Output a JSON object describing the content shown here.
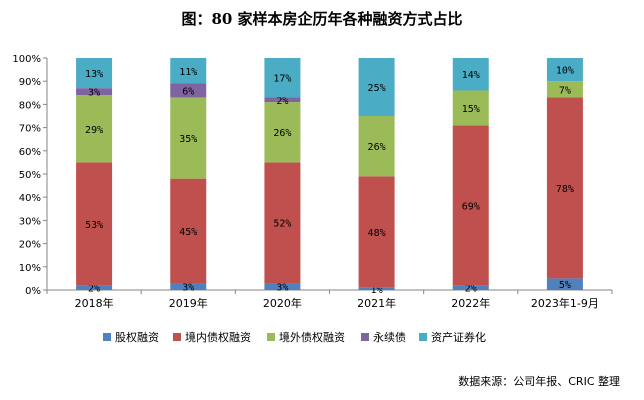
{
  "chart_data": {
    "type": "bar",
    "stacked": true,
    "title": "图：80 家样本房企历年各种融资方式占比",
    "categories": [
      "2018年",
      "2019年",
      "2020年",
      "2021年",
      "2022年",
      "2023年1-9月"
    ],
    "yticks": [
      "0%",
      "10%",
      "20%",
      "30%",
      "40%",
      "50%",
      "60%",
      "70%",
      "80%",
      "90%",
      "100%"
    ],
    "ylim": [
      0,
      100
    ],
    "legend_position": "bottom",
    "series": [
      {
        "name": "股权融资",
        "color": "#4f81bd",
        "values": [
          2,
          3,
          3,
          1,
          2,
          5
        ]
      },
      {
        "name": "境内债权融资",
        "color": "#c0504d",
        "values": [
          53,
          45,
          52,
          48,
          69,
          78
        ]
      },
      {
        "name": "境外债权融资",
        "color": "#9bbb59",
        "values": [
          29,
          35,
          26,
          26,
          15,
          7
        ]
      },
      {
        "name": "永续债",
        "color": "#8064a2",
        "values": [
          3,
          6,
          2,
          0,
          0,
          0
        ]
      },
      {
        "name": "资产证券化",
        "color": "#4bacc6",
        "values": [
          13,
          11,
          17,
          25,
          14,
          10
        ]
      }
    ],
    "source": "数据来源：公司年报、CRIC 整理"
  }
}
